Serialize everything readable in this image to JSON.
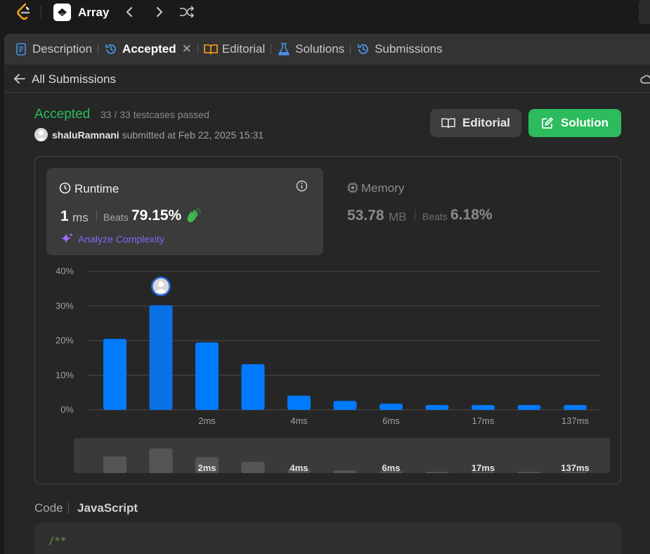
{
  "topbar": {
    "app_title": "Array",
    "icons": [
      "leetcode-logo-icon",
      "back-icon",
      "forward-icon",
      "shuffle-icon"
    ]
  },
  "tabs": [
    {
      "label": "Description",
      "icon": "description-icon"
    },
    {
      "label": "Accepted",
      "icon": "history-icon",
      "active": true
    },
    {
      "label": "Editorial",
      "icon": "book-icon"
    },
    {
      "label": "Solutions",
      "icon": "flask-icon"
    },
    {
      "label": "Submissions",
      "icon": "history-icon"
    }
  ],
  "subheader": {
    "back_label": "All Submissions"
  },
  "submission": {
    "status": "Accepted",
    "testcases": "33 / 33 testcases passed",
    "user": "shaluRamnani",
    "submitted_text": "submitted at Feb 22, 2025 15:31"
  },
  "actions": {
    "editorial_label": "Editorial",
    "solution_label": "Solution"
  },
  "runtime": {
    "title": "Runtime",
    "value": "1",
    "unit": "ms",
    "beats_label": "Beats",
    "beats": "79.15%",
    "analyze_label": "Analyze Complexity"
  },
  "memory": {
    "title": "Memory",
    "value": "53.78",
    "unit": "MB",
    "beats_label": "Beats",
    "beats": "6.18%"
  },
  "chart_data": {
    "type": "bar",
    "y_ticks": [
      "40%",
      "30%",
      "20%",
      "10%",
      "0%"
    ],
    "ylim": [
      0,
      40
    ],
    "x_tick_labels": [
      "",
      "",
      "2ms",
      "",
      "4ms",
      "",
      "6ms",
      "",
      "17ms",
      "",
      "137ms"
    ],
    "values": [
      20.5,
      30.2,
      19.5,
      13.2,
      4.1,
      2.6,
      1.8,
      1.4,
      1.4,
      1.4,
      1.4
    ],
    "highlight_index": 1,
    "minimap_values": [
      25,
      37,
      24,
      17,
      6,
      4,
      3,
      2,
      2,
      2,
      2
    ],
    "colors": {
      "bar": "#007aff",
      "highlight": "#0a72e6",
      "minimap_bar": "#555555",
      "grid": "#444444"
    }
  },
  "code": {
    "label": "Code",
    "language": "JavaScript",
    "first_line": "/**"
  }
}
